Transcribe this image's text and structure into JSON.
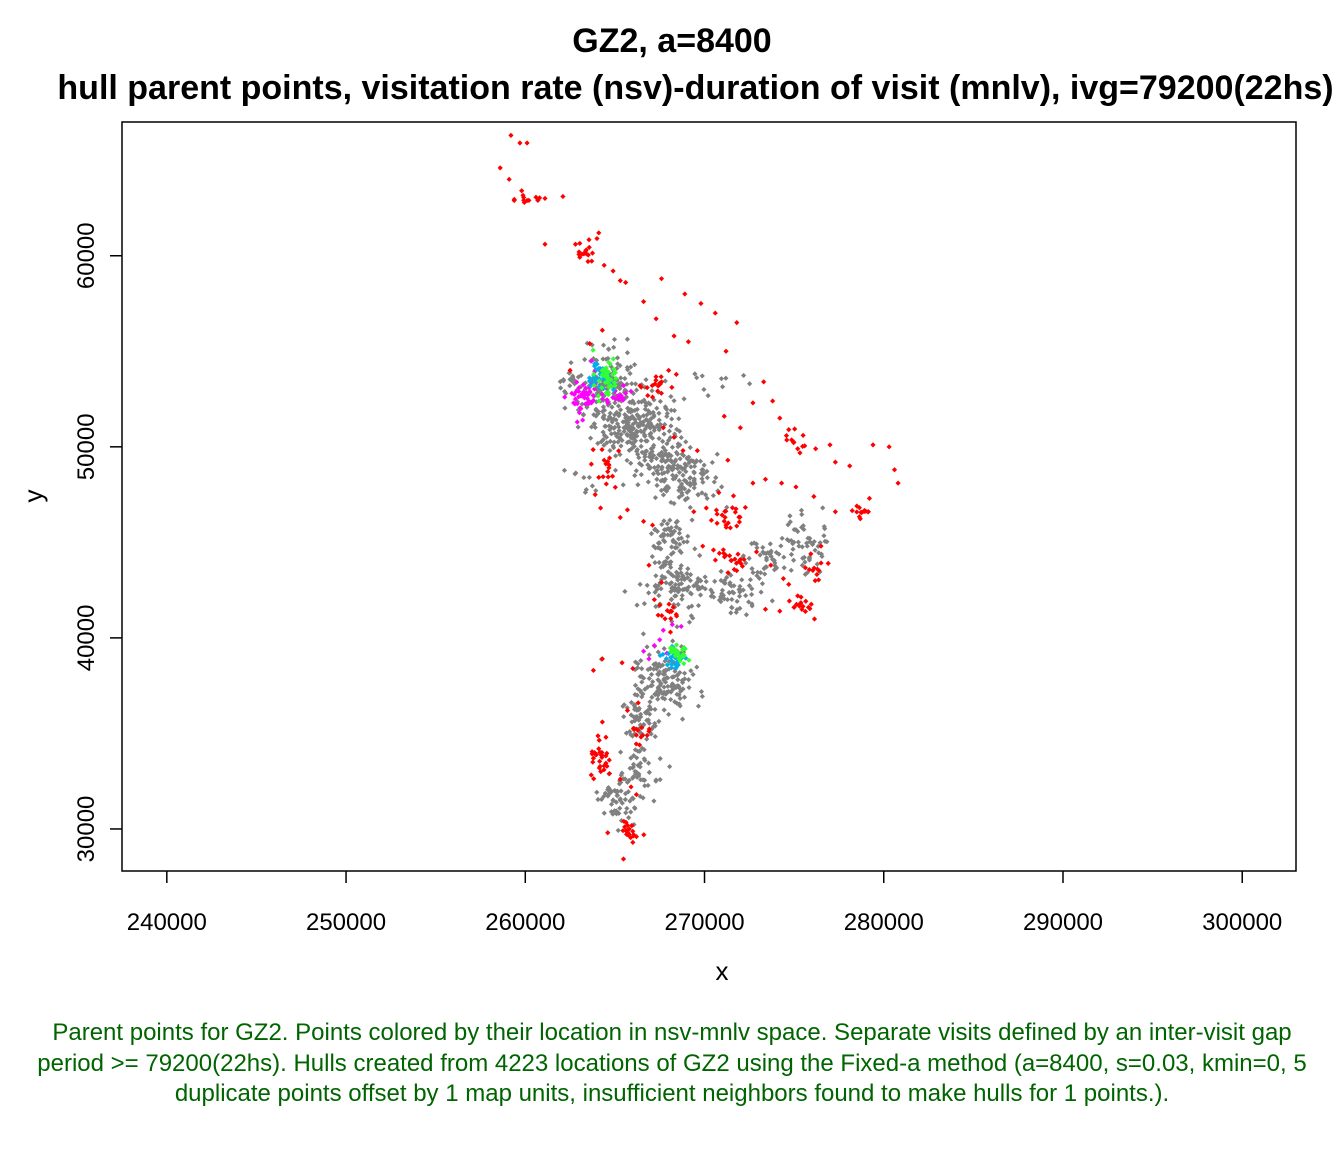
{
  "chart_data": {
    "type": "scatter",
    "title": "GZ2, a=8400",
    "subtitle": "hull parent points, visitation rate (nsv)-duration of visit (mnlv), ivg=79200(22hs)",
    "xlabel": "x",
    "ylabel": "y",
    "xlim": [
      237500,
      303000
    ],
    "ylim": [
      27800,
      67000
    ],
    "x_ticks": [
      240000,
      250000,
      260000,
      270000,
      280000,
      290000,
      300000
    ],
    "x_tick_labels": [
      "240000",
      "250000",
      "260000",
      "270000",
      "280000",
      "290000",
      "300000"
    ],
    "y_ticks": [
      30000,
      40000,
      50000,
      60000
    ],
    "y_tick_labels": [
      "30000",
      "40000",
      "50000",
      "60000"
    ],
    "grid": false,
    "legend": "none",
    "colors": {
      "gray": "#808080",
      "red": "#ff0000",
      "magenta": "#ff00ff",
      "cyan": "#00aeef",
      "green": "#33ff33"
    },
    "series": [
      {
        "color_key": "gray",
        "clusters": [
          {
            "cx": 264600,
            "cy": 53200,
            "sx": 900,
            "sy": 1100,
            "n": 150
          },
          {
            "cx": 265200,
            "cy": 51300,
            "sx": 1000,
            "sy": 900,
            "n": 120
          },
          {
            "cx": 266800,
            "cy": 51000,
            "sx": 1000,
            "sy": 1000,
            "n": 110
          },
          {
            "cx": 267800,
            "cy": 49000,
            "sx": 900,
            "sy": 900,
            "n": 110
          },
          {
            "cx": 269300,
            "cy": 48300,
            "sx": 700,
            "sy": 700,
            "n": 70
          },
          {
            "cx": 268100,
            "cy": 45300,
            "sx": 600,
            "sy": 500,
            "n": 60
          },
          {
            "cx": 268500,
            "cy": 42700,
            "sx": 900,
            "sy": 700,
            "n": 110
          },
          {
            "cx": 271400,
            "cy": 42300,
            "sx": 800,
            "sy": 500,
            "n": 60
          },
          {
            "cx": 273300,
            "cy": 44000,
            "sx": 600,
            "sy": 500,
            "n": 45
          },
          {
            "cx": 275600,
            "cy": 44900,
            "sx": 700,
            "sy": 800,
            "n": 55
          },
          {
            "cx": 267700,
            "cy": 37700,
            "sx": 900,
            "sy": 1000,
            "n": 150
          },
          {
            "cx": 266400,
            "cy": 35700,
            "sx": 500,
            "sy": 800,
            "n": 50
          },
          {
            "cx": 266200,
            "cy": 33000,
            "sx": 500,
            "sy": 800,
            "n": 40
          },
          {
            "cx": 265200,
            "cy": 31600,
            "sx": 600,
            "sy": 700,
            "n": 60
          },
          {
            "cx": 262400,
            "cy": 53600,
            "sx": 300,
            "sy": 500,
            "n": 12
          },
          {
            "cx": 270300,
            "cy": 53600,
            "sx": 1400,
            "sy": 500,
            "n": 10
          },
          {
            "cx": 263400,
            "cy": 48300,
            "sx": 600,
            "sy": 400,
            "n": 10
          }
        ]
      },
      {
        "color_key": "red",
        "points": [
          [
            259200,
            66300
          ],
          [
            259700,
            65900
          ],
          [
            260100,
            65900
          ],
          [
            258600,
            64600
          ],
          [
            259100,
            64000
          ],
          [
            259800,
            63400
          ],
          [
            260200,
            62900
          ],
          [
            260700,
            62900
          ],
          [
            261100,
            63000
          ],
          [
            262100,
            63100
          ],
          [
            261100,
            60600
          ],
          [
            262800,
            60600
          ],
          [
            263000,
            60200
          ],
          [
            263400,
            60300
          ],
          [
            264000,
            60900
          ],
          [
            264100,
            61200
          ],
          [
            263500,
            59700
          ],
          [
            264400,
            59500
          ],
          [
            264900,
            59200
          ],
          [
            265300,
            58700
          ],
          [
            265600,
            58600
          ],
          [
            266600,
            57600
          ],
          [
            267600,
            58800
          ],
          [
            268900,
            58000
          ],
          [
            269800,
            57500
          ],
          [
            270600,
            57000
          ],
          [
            271800,
            56500
          ],
          [
            267300,
            56700
          ],
          [
            268300,
            55800
          ],
          [
            269100,
            55500
          ],
          [
            271200,
            55000
          ],
          [
            268000,
            54000
          ],
          [
            267600,
            53400
          ],
          [
            266800,
            53100
          ],
          [
            267100,
            52600
          ],
          [
            267700,
            51000
          ],
          [
            268300,
            50500
          ],
          [
            268800,
            49800
          ],
          [
            269600,
            49800
          ],
          [
            271100,
            51600
          ],
          [
            271300,
            49300
          ],
          [
            272000,
            51000
          ],
          [
            272700,
            52300
          ],
          [
            273300,
            53400
          ],
          [
            273800,
            52400
          ],
          [
            274200,
            51500
          ],
          [
            274700,
            50900
          ],
          [
            275500,
            50600
          ],
          [
            275200,
            49900
          ],
          [
            276200,
            49900
          ],
          [
            277000,
            50100
          ],
          [
            277300,
            49200
          ],
          [
            278100,
            49000
          ],
          [
            279400,
            50100
          ],
          [
            280300,
            50000
          ],
          [
            280600,
            48800
          ],
          [
            280800,
            48100
          ],
          [
            279200,
            47300
          ],
          [
            278500,
            46900
          ],
          [
            277300,
            46600
          ],
          [
            276100,
            47400
          ],
          [
            275100,
            47900
          ],
          [
            274300,
            48100
          ],
          [
            273400,
            48300
          ],
          [
            272700,
            48100
          ],
          [
            270800,
            47600
          ],
          [
            270100,
            46800
          ],
          [
            269400,
            46600
          ],
          [
            270700,
            46000
          ],
          [
            271200,
            45900
          ],
          [
            269900,
            44800
          ],
          [
            270500,
            44600
          ],
          [
            271400,
            44300
          ],
          [
            272000,
            44100
          ],
          [
            272900,
            44500
          ],
          [
            273700,
            43800
          ],
          [
            274400,
            43100
          ],
          [
            274700,
            42800
          ],
          [
            275200,
            42200
          ],
          [
            275800,
            41600
          ],
          [
            275000,
            41600
          ],
          [
            274200,
            41400
          ],
          [
            273400,
            41500
          ],
          [
            276300,
            43600
          ],
          [
            276900,
            43900
          ],
          [
            276500,
            44800
          ],
          [
            264300,
            56100
          ],
          [
            263600,
            55400
          ],
          [
            262500,
            54000
          ],
          [
            266400,
            53200
          ],
          [
            264400,
            49300
          ],
          [
            264600,
            48700
          ],
          [
            264100,
            48400
          ],
          [
            263900,
            47500
          ],
          [
            264200,
            46800
          ],
          [
            265300,
            46300
          ],
          [
            265700,
            46700
          ],
          [
            266600,
            46100
          ],
          [
            267100,
            45900
          ],
          [
            266900,
            43800
          ],
          [
            267600,
            42900
          ],
          [
            267200,
            42000
          ],
          [
            267800,
            41000
          ],
          [
            268100,
            40300
          ],
          [
            263800,
            38300
          ],
          [
            264300,
            38900
          ],
          [
            265400,
            38700
          ],
          [
            266000,
            38400
          ],
          [
            266300,
            36600
          ],
          [
            265700,
            36200
          ],
          [
            264300,
            35600
          ],
          [
            264500,
            34800
          ],
          [
            264100,
            34200
          ],
          [
            263800,
            33700
          ],
          [
            264400,
            33300
          ],
          [
            264700,
            32900
          ],
          [
            265300,
            32600
          ],
          [
            265900,
            32200
          ],
          [
            266200,
            31800
          ],
          [
            265500,
            30400
          ],
          [
            265800,
            30000
          ],
          [
            265700,
            29700
          ],
          [
            266000,
            29300
          ],
          [
            266200,
            29600
          ],
          [
            264600,
            29800
          ],
          [
            266800,
            34900
          ],
          [
            266500,
            35300
          ]
        ],
        "clusters": [
          {
            "cx": 271200,
            "cy": 46500,
            "sx": 600,
            "sy": 400,
            "n": 20
          },
          {
            "cx": 271600,
            "cy": 44200,
            "sx": 500,
            "sy": 300,
            "n": 18
          },
          {
            "cx": 275600,
            "cy": 41700,
            "sx": 300,
            "sy": 250,
            "n": 14
          },
          {
            "cx": 276100,
            "cy": 43700,
            "sx": 250,
            "sy": 300,
            "n": 10
          },
          {
            "cx": 278600,
            "cy": 46500,
            "sx": 300,
            "sy": 200,
            "n": 12
          },
          {
            "cx": 264200,
            "cy": 33800,
            "sx": 300,
            "sy": 600,
            "n": 25
          },
          {
            "cx": 265800,
            "cy": 29900,
            "sx": 250,
            "sy": 350,
            "n": 18
          },
          {
            "cx": 266300,
            "cy": 35000,
            "sx": 300,
            "sy": 300,
            "n": 12
          },
          {
            "cx": 267600,
            "cy": 53200,
            "sx": 400,
            "sy": 400,
            "n": 14
          },
          {
            "cx": 275000,
            "cy": 50400,
            "sx": 300,
            "sy": 400,
            "n": 10
          },
          {
            "cx": 264500,
            "cy": 48900,
            "sx": 400,
            "sy": 600,
            "n": 14
          },
          {
            "cx": 260100,
            "cy": 62900,
            "sx": 400,
            "sy": 150,
            "n": 10
          },
          {
            "cx": 263300,
            "cy": 60100,
            "sx": 400,
            "sy": 300,
            "n": 12
          },
          {
            "cx": 268200,
            "cy": 41600,
            "sx": 400,
            "sy": 500,
            "n": 12
          }
        ]
      },
      {
        "color_key": "magenta",
        "points": [
          [
            262200,
            52600
          ],
          [
            262600,
            52800
          ],
          [
            263000,
            53100
          ],
          [
            262800,
            52500
          ],
          [
            263300,
            52700
          ],
          [
            263500,
            52300
          ],
          [
            263100,
            52000
          ],
          [
            262700,
            52300
          ],
          [
            263600,
            52900
          ],
          [
            263900,
            53300
          ],
          [
            263200,
            51400
          ],
          [
            262900,
            51300
          ],
          [
            265000,
            52900
          ],
          [
            265300,
            52500
          ],
          [
            265600,
            52800
          ],
          [
            265900,
            52900
          ],
          [
            264600,
            52300
          ],
          [
            264300,
            52500
          ],
          [
            263900,
            54000
          ],
          [
            263700,
            54500
          ],
          [
            267700,
            40400
          ],
          [
            268200,
            40700
          ],
          [
            268700,
            40600
          ],
          [
            266600,
            39300
          ],
          [
            267200,
            39600
          ],
          [
            267500,
            39900
          ],
          [
            267900,
            39200
          ],
          [
            266900,
            38900
          ]
        ],
        "clusters": [
          {
            "cx": 263200,
            "cy": 52600,
            "sx": 400,
            "sy": 400,
            "n": 30
          },
          {
            "cx": 265100,
            "cy": 52500,
            "sx": 300,
            "sy": 250,
            "n": 10
          }
        ]
      },
      {
        "color_key": "cyan",
        "clusters": [
          {
            "cx": 264100,
            "cy": 53700,
            "sx": 350,
            "sy": 450,
            "n": 30
          },
          {
            "cx": 268200,
            "cy": 39000,
            "sx": 350,
            "sy": 350,
            "n": 25
          }
        ]
      },
      {
        "color_key": "green",
        "clusters": [
          {
            "cx": 264500,
            "cy": 53600,
            "sx": 350,
            "sy": 500,
            "n": 40
          },
          {
            "cx": 268500,
            "cy": 39200,
            "sx": 300,
            "sy": 300,
            "n": 25
          }
        ]
      }
    ]
  },
  "caption": {
    "text": "Parent points for GZ2. Points colored by their location in nsv-mnlv space. Separate visits defined by an inter-visit gap period >= 79200(22hs). Hulls created from 4223 locations of GZ2 using the Fixed-a method (a=8400, s=0.03, kmin=0, 5 duplicate points offset by 1 map units, insufficient neighbors found to make hulls for 1 points.)."
  }
}
